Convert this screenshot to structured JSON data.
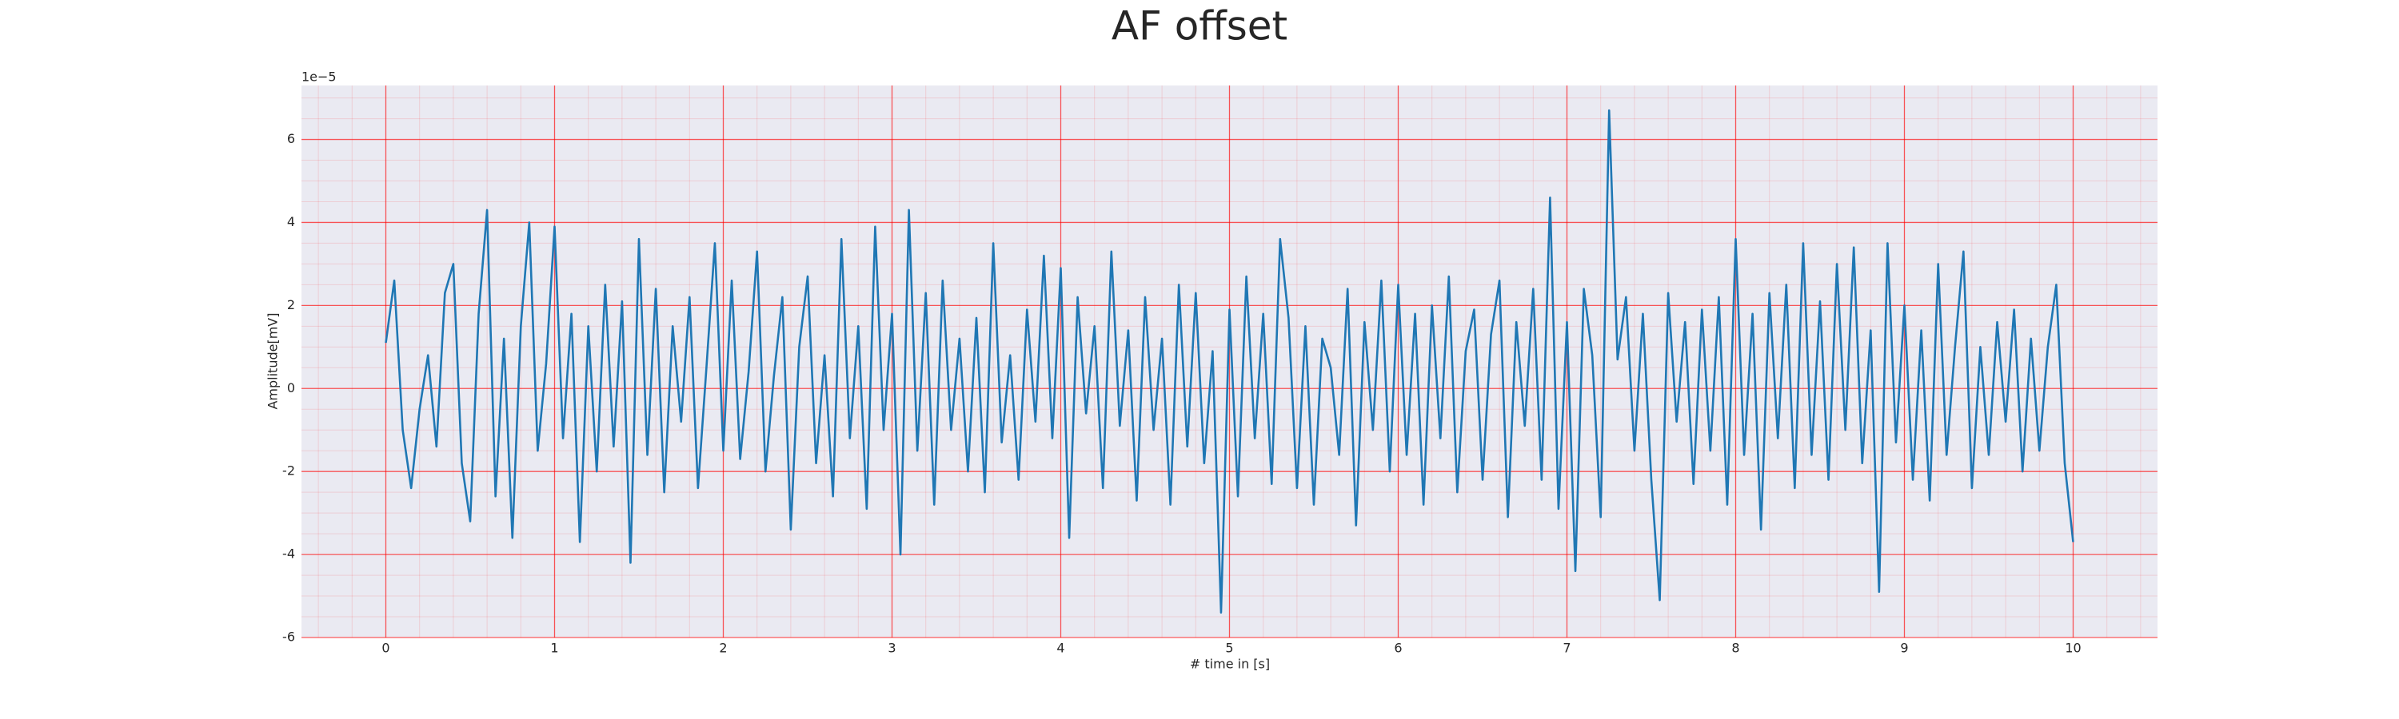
{
  "chart_data": {
    "type": "line",
    "title": "AF offset",
    "xlabel": "# time in [s]",
    "ylabel": "Amplitude[mV]",
    "y_offset_label": "1e−5",
    "x": [
      0,
      0.05,
      0.1,
      0.15,
      0.2,
      0.25,
      0.3,
      0.35,
      0.4,
      0.45,
      0.5,
      0.55,
      0.6,
      0.65,
      0.7,
      0.75,
      0.8,
      0.85,
      0.9,
      0.95,
      1,
      1.05,
      1.1,
      1.15,
      1.2,
      1.25,
      1.3,
      1.35,
      1.4,
      1.45,
      1.5,
      1.55,
      1.6,
      1.65,
      1.7,
      1.75,
      1.8,
      1.85,
      1.9,
      1.95,
      2,
      2.05,
      2.1,
      2.15,
      2.2,
      2.25,
      2.3,
      2.35,
      2.4,
      2.45,
      2.5,
      2.55,
      2.6,
      2.65,
      2.7,
      2.75,
      2.8,
      2.85,
      2.9,
      2.95,
      3,
      3.05,
      3.1,
      3.15,
      3.2,
      3.25,
      3.3,
      3.35,
      3.4,
      3.45,
      3.5,
      3.55,
      3.6,
      3.65,
      3.7,
      3.75,
      3.8,
      3.85,
      3.9,
      3.95,
      4,
      4.05,
      4.1,
      4.15,
      4.2,
      4.25,
      4.3,
      4.35,
      4.4,
      4.45,
      4.5,
      4.55,
      4.6,
      4.65,
      4.7,
      4.75,
      4.8,
      4.85,
      4.9,
      4.95,
      5,
      5.05,
      5.1,
      5.15,
      5.2,
      5.25,
      5.3,
      5.35,
      5.4,
      5.45,
      5.5,
      5.55,
      5.6,
      5.65,
      5.7,
      5.75,
      5.8,
      5.85,
      5.9,
      5.95,
      6,
      6.05,
      6.1,
      6.15,
      6.2,
      6.25,
      6.3,
      6.35,
      6.4,
      6.45,
      6.5,
      6.55,
      6.6,
      6.65,
      6.7,
      6.75,
      6.8,
      6.85,
      6.9,
      6.95,
      7,
      7.05,
      7.1,
      7.15,
      7.2,
      7.25,
      7.3,
      7.35,
      7.4,
      7.45,
      7.5,
      7.55,
      7.6,
      7.65,
      7.7,
      7.75,
      7.8,
      7.85,
      7.9,
      7.95,
      8,
      8.05,
      8.1,
      8.15,
      8.2,
      8.25,
      8.3,
      8.35,
      8.4,
      8.45,
      8.5,
      8.55,
      8.6,
      8.65,
      8.7,
      8.75,
      8.8,
      8.85,
      8.9,
      8.95,
      9,
      9.05,
      9.1,
      9.15,
      9.2,
      9.25,
      9.3,
      9.35,
      9.4,
      9.45,
      9.5,
      9.55,
      9.6,
      9.65,
      9.7,
      9.75,
      9.8,
      9.85,
      9.9,
      9.95,
      10
    ],
    "series": [
      {
        "color": "#1f77b4",
        "values": [
          1.1,
          2.6,
          -1.0,
          -2.4,
          -0.5,
          0.8,
          -1.4,
          2.3,
          3.0,
          -1.8,
          -3.2,
          1.8,
          4.3,
          -2.6,
          1.2,
          -3.6,
          1.5,
          4.0,
          -1.5,
          0.6,
          3.9,
          -1.2,
          1.8,
          -3.7,
          1.5,
          -2.0,
          2.5,
          -1.4,
          2.1,
          -4.2,
          3.6,
          -1.6,
          2.4,
          -2.5,
          1.5,
          -0.8,
          2.2,
          -2.4,
          0.5,
          3.5,
          -1.5,
          2.6,
          -1.7,
          0.4,
          3.3,
          -2.0,
          0.3,
          2.2,
          -3.4,
          1.0,
          2.7,
          -1.8,
          0.8,
          -2.6,
          3.6,
          -1.2,
          1.5,
          -2.9,
          3.9,
          -1.0,
          1.8,
          -4.0,
          4.3,
          -1.5,
          2.3,
          -2.8,
          2.6,
          -1.0,
          1.2,
          -2.0,
          1.7,
          -2.5,
          3.5,
          -1.3,
          0.8,
          -2.2,
          1.9,
          -0.8,
          3.2,
          -1.2,
          2.9,
          -3.6,
          2.2,
          -0.6,
          1.5,
          -2.4,
          3.3,
          -0.9,
          1.4,
          -2.7,
          2.2,
          -1.0,
          1.2,
          -2.8,
          2.5,
          -1.4,
          2.3,
          -1.8,
          0.9,
          -5.4,
          1.9,
          -2.6,
          2.7,
          -1.2,
          1.8,
          -2.3,
          3.6,
          1.7,
          -2.4,
          1.5,
          -2.8,
          1.2,
          0.5,
          -1.6,
          2.4,
          -3.3,
          1.6,
          -1.0,
          2.6,
          -2.0,
          2.5,
          -1.6,
          1.8,
          -2.8,
          2.0,
          -1.2,
          2.7,
          -2.5,
          0.9,
          1.9,
          -2.2,
          1.3,
          2.6,
          -3.1,
          1.6,
          -0.9,
          2.4,
          -2.2,
          4.6,
          -2.9,
          1.6,
          -4.4,
          2.4,
          0.8,
          -3.1,
          6.7,
          0.7,
          2.2,
          -1.5,
          1.8,
          -2.2,
          -5.1,
          2.3,
          -0.8,
          1.6,
          -2.3,
          1.9,
          -1.5,
          2.2,
          -2.8,
          3.6,
          -1.6,
          1.8,
          -3.4,
          2.3,
          -1.2,
          2.5,
          -2.4,
          3.5,
          -1.6,
          2.1,
          -2.2,
          3.0,
          -1.0,
          3.4,
          -1.8,
          1.4,
          -4.9,
          3.5,
          -1.3,
          2.0,
          -2.2,
          1.4,
          -2.7,
          3.0,
          -1.6,
          1.0,
          3.3,
          -2.4,
          1.0,
          -1.6,
          1.6,
          -0.8,
          1.9,
          -2.0,
          1.2,
          -1.5,
          1.0,
          2.5,
          -1.8,
          -3.7
        ]
      }
    ],
    "xlim": [
      -0.5,
      10.5
    ],
    "ylim": [
      -6,
      7.3
    ],
    "xticks": [
      0,
      1,
      2,
      3,
      4,
      5,
      6,
      7,
      8,
      9,
      10
    ],
    "yticks": [
      -6,
      -4,
      -2,
      0,
      2,
      4,
      6
    ],
    "grid": true,
    "grid_color": "#ff0000",
    "minor_grid": true,
    "xminor_step": 0.2,
    "yminor_step": 0.5,
    "background": "#eaeaf2"
  }
}
